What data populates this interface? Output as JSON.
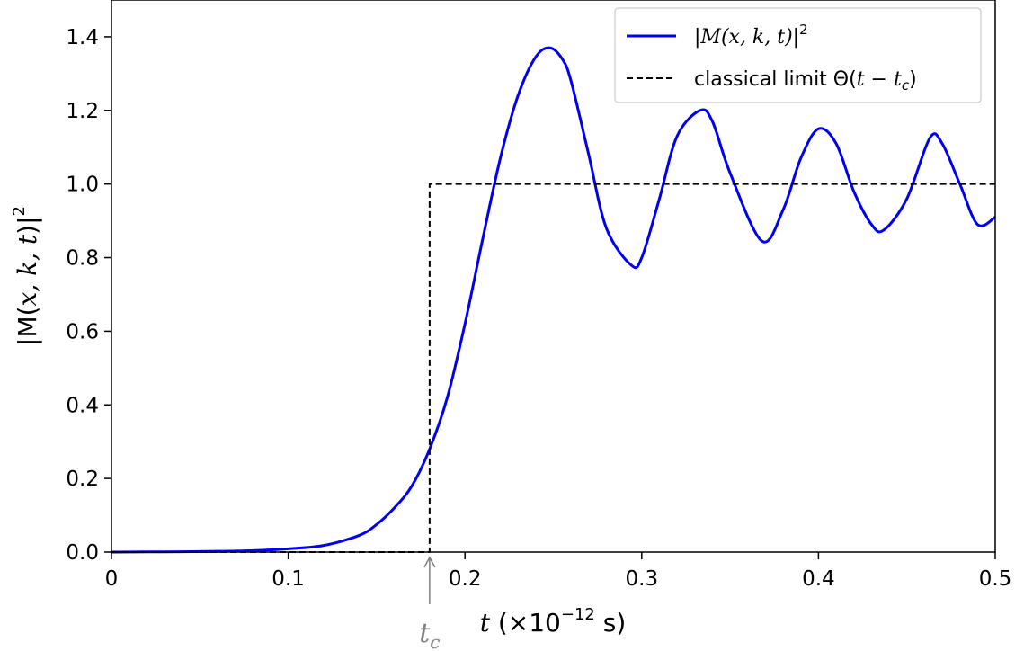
{
  "chart_data": {
    "type": "line",
    "xlabel": {
      "var": "t",
      "open": " (×10",
      "exp": "−12",
      "close": " s)"
    },
    "ylabel": {
      "pre": "|M(",
      "vars": "x, k, t",
      "post": ")|",
      "exp": "2"
    },
    "xlim": [
      0,
      0.5
    ],
    "ylim": [
      0,
      1.5
    ],
    "xticks": [
      0,
      0.1,
      0.2,
      0.3,
      0.4,
      0.5
    ],
    "xtick_labels": [
      "0",
      "0.1",
      "0.2",
      "0.3",
      "0.4",
      "0.5"
    ],
    "yticks": [
      0,
      0.2,
      0.4,
      0.6,
      0.8,
      1.0,
      1.2,
      1.4
    ],
    "ytick_labels": [
      "0.0",
      "0.2",
      "0.4",
      "0.6",
      "0.8",
      "1.0",
      "1.2",
      "1.4"
    ],
    "legend_position": "top-right",
    "grid": false,
    "series": [
      {
        "name": "|M(x, k, t)|²",
        "legend": {
          "pre": "|",
          "italic": "M(x, k, t)",
          "post": "|",
          "exp": "2"
        },
        "color": "#0000ee",
        "style": "solid",
        "x": [
          0,
          0.02,
          0.04,
          0.06,
          0.08,
          0.1,
          0.12,
          0.14,
          0.15,
          0.16,
          0.17,
          0.18,
          0.19,
          0.2,
          0.21,
          0.22,
          0.23,
          0.24,
          0.248,
          0.255,
          0.26,
          0.27,
          0.28,
          0.294,
          0.3,
          0.31,
          0.32,
          0.333,
          0.34,
          0.35,
          0.368,
          0.38,
          0.39,
          0.4,
          0.41,
          0.42,
          0.43,
          0.437,
          0.45,
          0.463,
          0.47,
          0.48,
          0.49,
          0.5
        ],
        "y": [
          0.0,
          0.0005,
          0.001,
          0.002,
          0.004,
          0.009,
          0.018,
          0.045,
          0.075,
          0.12,
          0.18,
          0.28,
          0.42,
          0.62,
          0.85,
          1.07,
          1.24,
          1.345,
          1.37,
          1.34,
          1.28,
          1.08,
          0.88,
          0.78,
          0.8,
          0.96,
          1.13,
          1.2,
          1.17,
          1.03,
          0.845,
          0.93,
          1.07,
          1.15,
          1.11,
          0.98,
          0.89,
          0.875,
          0.96,
          1.125,
          1.11,
          1.0,
          0.89,
          0.91
        ]
      },
      {
        "name": "classical limit Θ(t − tc)",
        "legend": {
          "pre": "classical limit Θ(",
          "var1": "t",
          "minus": " − ",
          "var2": "t",
          "sub": "c",
          "post": ")"
        },
        "color": "#000000",
        "style": "dashed",
        "x": [
          0,
          0.18,
          0.18,
          0.5
        ],
        "y": [
          0,
          0,
          1,
          1
        ]
      }
    ],
    "annotations": [
      {
        "type": "arrow",
        "x": 0.18,
        "y": 0.0,
        "label_var": "t",
        "label_sub": "c",
        "color": "#808080"
      }
    ]
  }
}
